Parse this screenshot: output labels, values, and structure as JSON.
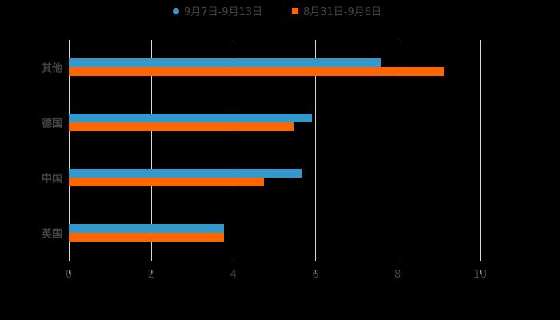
{
  "chart_data": {
    "type": "bar",
    "orientation": "horizontal",
    "title": "",
    "xlabel": "",
    "ylabel": "",
    "categories": [
      "其他",
      "德国",
      "中国",
      "英国"
    ],
    "series": [
      {
        "name": "9月7日-9月13日",
        "color": "#3399cc",
        "values": [
          7.58,
          5.91,
          5.67,
          3.77
        ]
      },
      {
        "name": "8月31日-9月6日",
        "color": "#ff6600",
        "values": [
          9.12,
          5.46,
          4.74,
          3.77
        ]
      }
    ],
    "xlim": [
      0,
      10
    ],
    "xticks": [
      "0",
      "2",
      "4",
      "6",
      "8",
      "10"
    ],
    "grid": true,
    "legend_position": "top"
  },
  "legend": {
    "items": [
      {
        "label": "9月7日-9月13日",
        "color": "#3399cc",
        "shape": "circle"
      },
      {
        "label": "8月31日-9月6日",
        "color": "#ff6600",
        "shape": "square"
      }
    ]
  },
  "colors": {
    "background": "#000000",
    "text": "#444444",
    "grid": "#d8d8d8"
  }
}
